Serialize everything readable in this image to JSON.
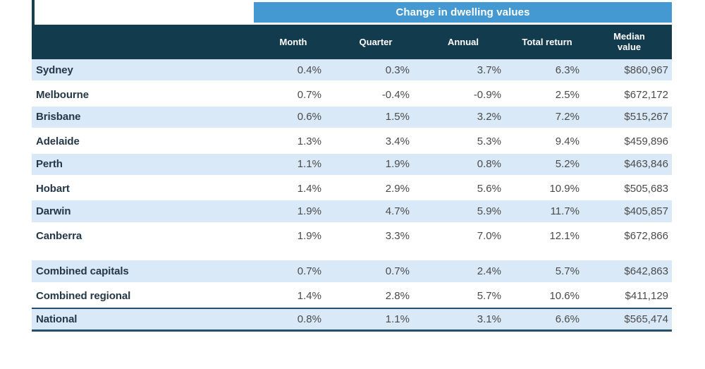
{
  "banner": {
    "title": "Change in dwelling values"
  },
  "header": {
    "month": "Month",
    "quarter": "Quarter",
    "annual": "Annual",
    "total_return": "Total return",
    "median_line1": "Median",
    "median_line2": "value"
  },
  "chart_data": {
    "type": "table",
    "title": "Change in dwelling values",
    "columns": [
      "",
      "Month",
      "Quarter",
      "Annual",
      "Total return",
      "Median value"
    ],
    "rows": [
      {
        "label": "Sydney",
        "month": "0.4%",
        "quarter": "0.3%",
        "annual": "3.7%",
        "total_return": "6.3%",
        "median_value": "$860,967"
      },
      {
        "label": "Melbourne",
        "month": "0.7%",
        "quarter": "-0.4%",
        "annual": "-0.9%",
        "total_return": "2.5%",
        "median_value": "$672,172"
      },
      {
        "label": "Brisbane",
        "month": "0.6%",
        "quarter": "1.5%",
        "annual": "3.2%",
        "total_return": "7.2%",
        "median_value": "$515,267"
      },
      {
        "label": "Adelaide",
        "month": "1.3%",
        "quarter": "3.4%",
        "annual": "5.3%",
        "total_return": "9.4%",
        "median_value": "$459,896"
      },
      {
        "label": "Perth",
        "month": "1.1%",
        "quarter": "1.9%",
        "annual": "0.8%",
        "total_return": "5.2%",
        "median_value": "$463,846"
      },
      {
        "label": "Hobart",
        "month": "1.4%",
        "quarter": "2.9%",
        "annual": "5.6%",
        "total_return": "10.9%",
        "median_value": "$505,683"
      },
      {
        "label": "Darwin",
        "month": "1.9%",
        "quarter": "4.7%",
        "annual": "5.9%",
        "total_return": "11.7%",
        "median_value": "$405,857"
      },
      {
        "label": "Canberra",
        "month": "1.9%",
        "quarter": "3.3%",
        "annual": "7.0%",
        "total_return": "12.1%",
        "median_value": "$672,866"
      },
      {
        "label": "Combined capitals",
        "month": "0.7%",
        "quarter": "0.7%",
        "annual": "2.4%",
        "total_return": "5.7%",
        "median_value": "$642,863"
      },
      {
        "label": "Combined regional",
        "month": "1.4%",
        "quarter": "2.8%",
        "annual": "5.7%",
        "total_return": "10.6%",
        "median_value": "$411,129"
      },
      {
        "label": "National",
        "month": "0.8%",
        "quarter": "1.1%",
        "annual": "3.1%",
        "total_return": "6.6%",
        "median_value": "$565,474"
      }
    ]
  },
  "colors": {
    "banner_blue": "#4499D2",
    "header_dark": "#123B4D",
    "row_blue": "#D9E9F7",
    "label_text": "#253848",
    "value_text": "#4B4B4B",
    "national_border": "#24506B"
  }
}
